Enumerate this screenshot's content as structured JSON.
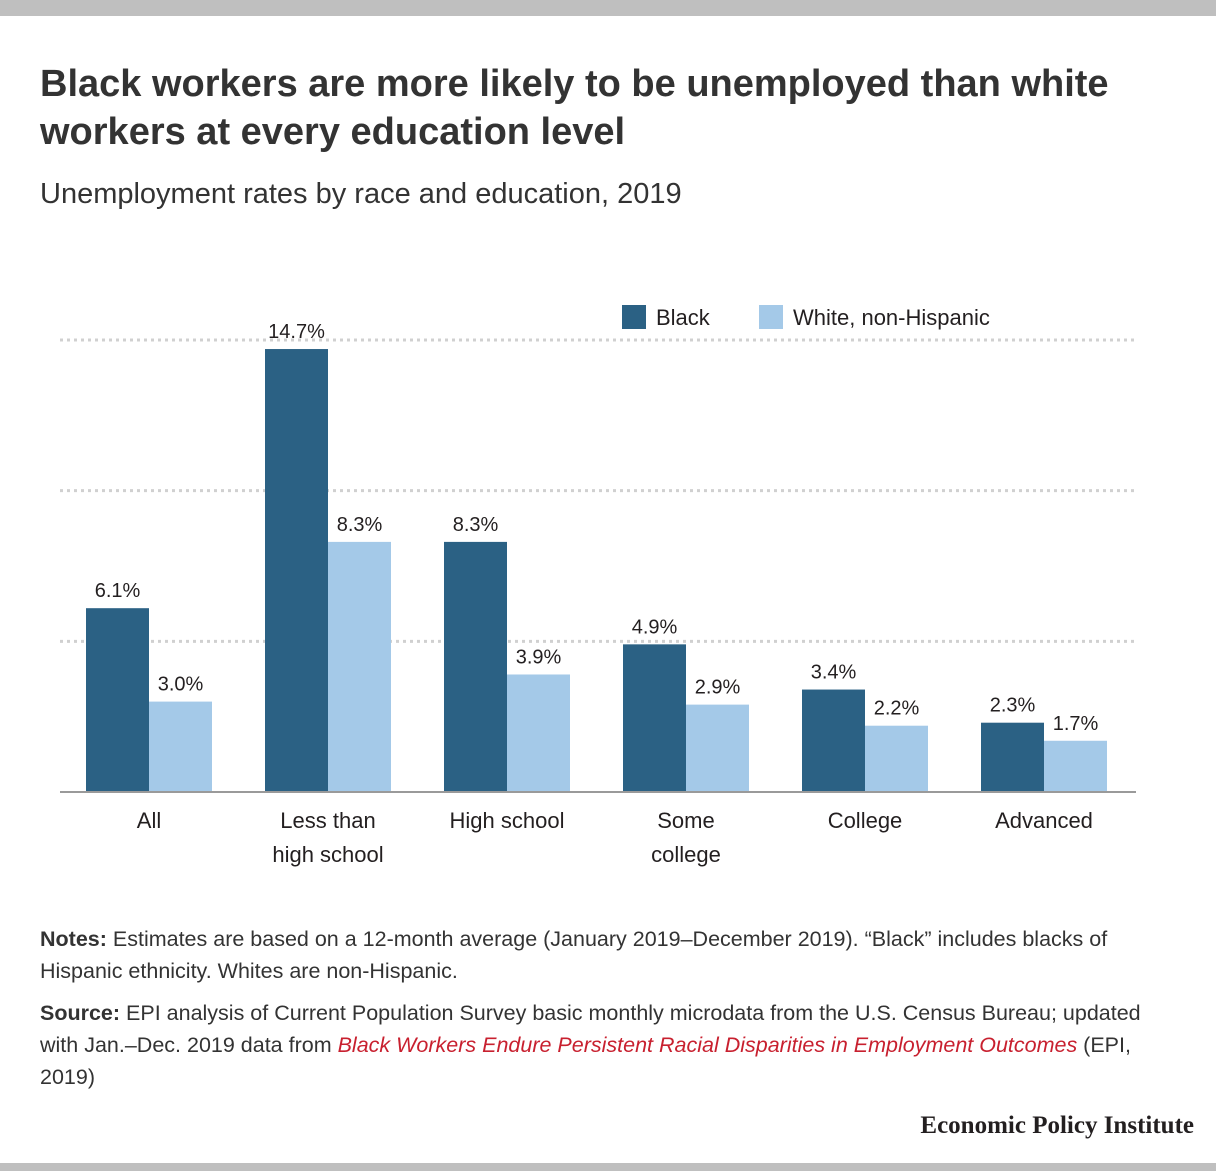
{
  "title": "Black workers are more likely to be unemployed than white workers at every education level",
  "subtitle": "Unemployment rates by race and education, 2019",
  "chart_data": {
    "type": "bar",
    "categories": [
      [
        "All"
      ],
      [
        "Less than",
        "high school"
      ],
      [
        "High school"
      ],
      [
        "Some",
        "college"
      ],
      [
        "College"
      ],
      [
        "Advanced"
      ]
    ],
    "series": [
      {
        "name": "Black",
        "color": "#2b6184",
        "values": [
          6.1,
          14.7,
          8.3,
          4.9,
          3.4,
          2.3
        ],
        "labels": [
          "6.1%",
          "14.7%",
          "8.3%",
          "4.9%",
          "3.4%",
          "2.3%"
        ]
      },
      {
        "name": "White, non-Hispanic",
        "color": "#a4c9e8",
        "values": [
          3.0,
          8.3,
          3.9,
          2.9,
          2.2,
          1.7
        ],
        "labels": [
          "3.0%",
          "8.3%",
          "3.9%",
          "2.9%",
          "2.2%",
          "1.7%"
        ]
      }
    ],
    "ylim": [
      0,
      15
    ],
    "gridlines": [
      5,
      10,
      15
    ],
    "grid": true,
    "legend": "top-right"
  },
  "notes": {
    "label": "Notes:",
    "text": " Estimates are based on a 12-month average (January 2019–December 2019). “Black” includes blacks of Hispanic ethnicity. Whites are non-Hispanic."
  },
  "source": {
    "label": "Source:",
    "text": " EPI analysis of Current Population Survey basic monthly microdata from the U.S. Census Bureau; updated with Jan.–Dec. 2019 data from ",
    "link": "Black Workers Endure Persistent Racial Disparities in Employment Outcomes",
    "suffix": " (EPI, 2019)"
  },
  "brand": "Economic Policy Institute"
}
